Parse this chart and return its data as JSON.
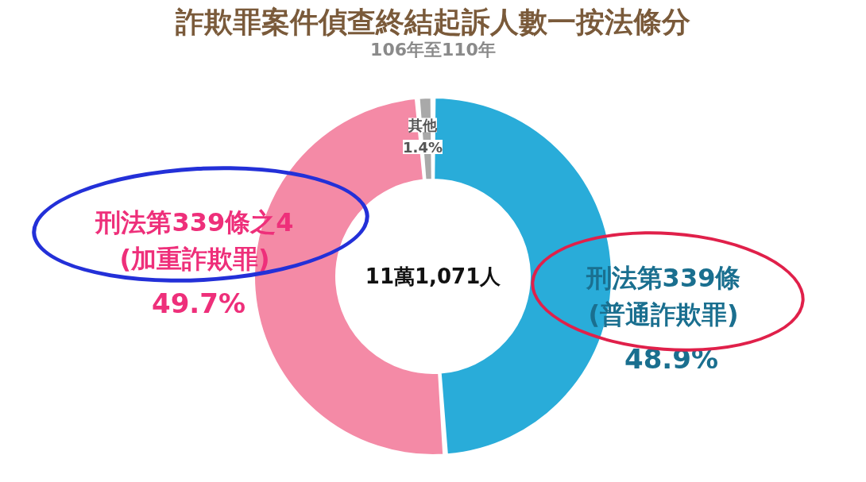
{
  "chart_data": {
    "type": "donut",
    "title": "詐欺罪案件偵查終結起訴人數一按法條分",
    "subtitle": "106年至110年",
    "categories": [
      "刑法第339條\n(普通詐欺罪)",
      "刑法第339條之4\n(加重詐欺罪)",
      "其他"
    ],
    "values": [
      48.9,
      49.7,
      1.4
    ],
    "colors": [
      "#29acd9",
      "#f48aa6",
      "#a9a9a9"
    ],
    "value_labels": [
      "48.9%",
      "49.7%",
      "1.4%"
    ],
    "annotations": [
      "11萬1,071人"
    ]
  }
}
